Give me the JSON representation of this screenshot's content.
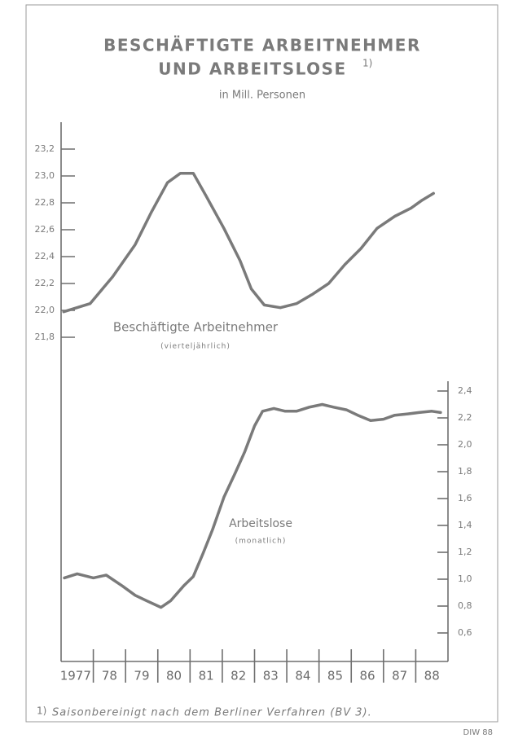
{
  "chart_data": {
    "type": "line",
    "title": [
      "BESCHÄFTIGTE ARBEITNEHMER",
      "UND ARBEITSLOSE"
    ],
    "title_note": "1)",
    "subtitle": "in Mill. Personen",
    "categories": [
      "1977",
      "78",
      "79",
      "80",
      "81",
      "82",
      "83",
      "84",
      "85",
      "86",
      "87",
      "88"
    ],
    "xlim": [
      1977,
      1989
    ],
    "xticks": [
      1978,
      1979,
      1980,
      1981,
      1982,
      1983,
      1984,
      1985,
      1986,
      1987,
      1988
    ],
    "ylim": [
      19.4,
      23.4
    ],
    "yticks": [
      {
        "value": 23.2,
        "label": "23,2"
      },
      {
        "value": 23.0,
        "label": "23,0"
      },
      {
        "value": 22.8,
        "label": "22,8"
      },
      {
        "value": 22.6,
        "label": "22,6"
      },
      {
        "value": 22.4,
        "label": "22,4"
      },
      {
        "value": 22.2,
        "label": "22,2"
      },
      {
        "value": 22.0,
        "label": "22,0"
      },
      {
        "value": 21.8,
        "label": "21,8"
      }
    ],
    "y2lim": [
      0.4,
      4.4
    ],
    "y2ticks": [
      {
        "value": 2.4,
        "label": "2,4"
      },
      {
        "value": 2.2,
        "label": "2,2"
      },
      {
        "value": 2.0,
        "label": "2,0"
      },
      {
        "value": 1.8,
        "label": "1,8"
      },
      {
        "value": 1.6,
        "label": "1,6"
      },
      {
        "value": 1.4,
        "label": "1,4"
      },
      {
        "value": 1.2,
        "label": "1,2"
      },
      {
        "value": 1.0,
        "label": "1,0"
      },
      {
        "value": 0.8,
        "label": "0,8"
      },
      {
        "value": 0.6,
        "label": "0,6"
      }
    ],
    "series": [
      {
        "name": "Beschäftigte Arbeitnehmer",
        "annotation": "(vierteljährlich)",
        "color": "#7a7a7a",
        "axis": "y",
        "x": [
          1977.08,
          1977.9,
          1978.6,
          1979.3,
          1979.8,
          1980.3,
          1980.7,
          1981.1,
          1981.5,
          1982.05,
          1982.55,
          1982.9,
          1983.3,
          1983.8,
          1984.3,
          1984.8,
          1985.3,
          1985.8,
          1986.3,
          1986.8,
          1987.35,
          1987.85,
          1988.2,
          1988.55
        ],
        "values": [
          21.99,
          22.05,
          22.25,
          22.49,
          22.73,
          22.95,
          23.02,
          23.02,
          22.85,
          22.61,
          22.37,
          22.16,
          22.04,
          22.02,
          22.05,
          22.12,
          22.2,
          22.34,
          22.46,
          22.61,
          22.7,
          22.76,
          22.82,
          22.87
        ]
      },
      {
        "name": "Arbeitslose",
        "annotation": "(monatlich)",
        "color": "#7a7a7a",
        "axis": "y2",
        "x": [
          1977.1,
          1977.5,
          1978.0,
          1978.4,
          1978.9,
          1979.3,
          1979.65,
          1980.1,
          1980.4,
          1980.8,
          1981.1,
          1981.4,
          1981.7,
          1982.05,
          1982.4,
          1982.7,
          1983.0,
          1983.25,
          1983.6,
          1983.95,
          1984.3,
          1984.7,
          1985.1,
          1985.45,
          1985.85,
          1986.2,
          1986.6,
          1987.0,
          1987.35,
          1987.75,
          1988.1,
          1988.5,
          1988.77
        ],
        "values": [
          1.01,
          1.04,
          1.01,
          1.03,
          0.95,
          0.88,
          0.84,
          0.79,
          0.84,
          0.95,
          1.02,
          1.19,
          1.37,
          1.61,
          1.79,
          1.95,
          2.14,
          2.25,
          2.27,
          2.25,
          2.25,
          2.28,
          2.3,
          2.28,
          2.26,
          2.22,
          2.18,
          2.19,
          2.22,
          2.23,
          2.24,
          2.25,
          2.24
        ]
      }
    ],
    "footnote": "Saisonbereinigt nach dem Berliner Verfahren (BV 3).",
    "source": "DIW 88"
  }
}
